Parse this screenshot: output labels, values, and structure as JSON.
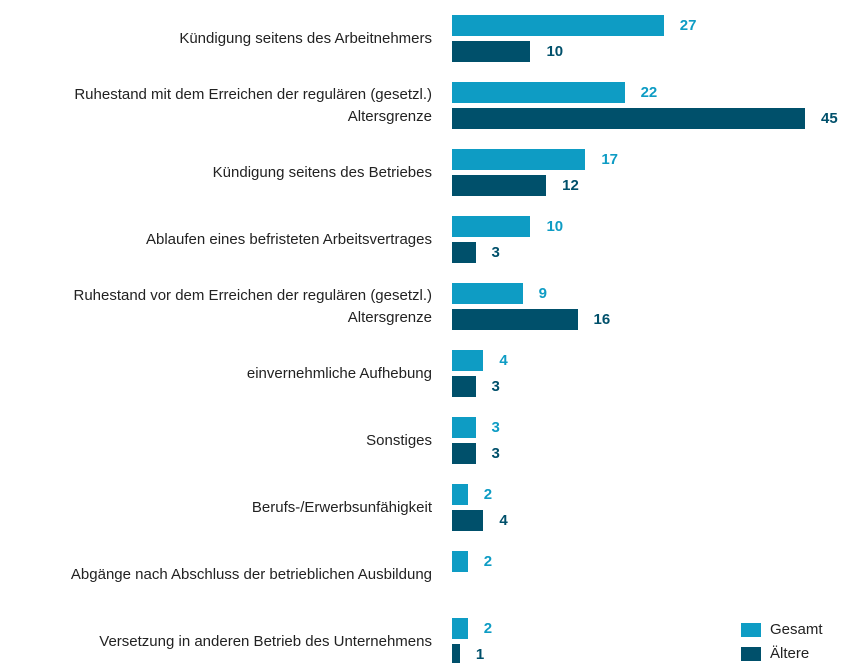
{
  "chart_data": {
    "type": "bar",
    "orientation": "horizontal",
    "categories": [
      "Kündigung seitens des Arbeitnehmers",
      "Ruhestand mit dem Erreichen der regulären (gesetzl.)\nAltersgrenze",
      "Kündigung seitens des Betriebes",
      "Ablaufen eines befristeten Arbeitsvertrages",
      "Ruhestand vor dem Erreichen der regulären (gesetzl.)\nAltersgrenze",
      "einvernehmliche Aufhebung",
      "Sonstiges",
      "Berufs-/Erwerbsunfähigkeit",
      "Abgänge nach Abschluss der betrieblichen Ausbildung",
      "Versetzung in anderen Betrieb des Unternehmens"
    ],
    "series": [
      {
        "name": "Gesamt",
        "color": "#0e9cc4",
        "values": [
          27,
          22,
          17,
          10,
          9,
          4,
          3,
          2,
          2,
          2
        ]
      },
      {
        "name": "Ältere",
        "color": "#00506b",
        "values": [
          10,
          45,
          12,
          3,
          16,
          3,
          3,
          4,
          null,
          1
        ]
      }
    ],
    "legend": "bottom-right"
  }
}
